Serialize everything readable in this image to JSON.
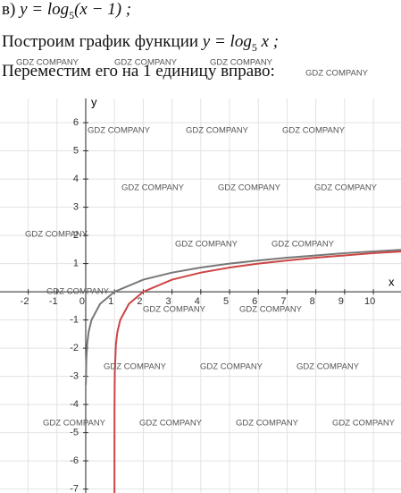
{
  "lines": [
    {
      "prefix": "в)",
      "formula": "y = log",
      "sub": "5",
      "rest": "(x − 1) ;"
    },
    {
      "prefix": "Построим график функции",
      "formula": "y = log",
      "sub": "5",
      "rest": "x ;"
    },
    {
      "prefix": "Переместим его на 1 единицу вправо:"
    }
  ],
  "watermarks": [
    "GDZ COMPANY",
    "GDZ COMPANY",
    "GDZ COMPANY",
    "GDZ COMPANY",
    "GDZ COMPANY",
    "GDZ COMPANY",
    "GDZ COMPANY",
    "GDZ COMPANY",
    "GDZ COMPANY",
    "GDZ COMPANY",
    "GDZ COMPANY",
    "GDZ COMPANY",
    "GDZ COMPANY",
    "GDZ COMPANY",
    "GDZ COMPANY",
    "GDZ COMPANY",
    "GDZ COMPANY",
    "GDZ COMPANY",
    "GDZ COMPANY",
    "GDZ COMPANY",
    "GDZ COMPANY",
    "GDZ COMPANY",
    "GDZ COMPANY"
  ],
  "chart_data": {
    "type": "line",
    "x_label": "x",
    "y_label": "y",
    "xlim": [
      -2.98,
      10.96
    ],
    "ylim": [
      -7.14,
      6.86
    ],
    "xticks": [
      -2,
      -1,
      0,
      1,
      2,
      3,
      4,
      5,
      6,
      7,
      8,
      9,
      10
    ],
    "yticks": [
      -7,
      -6,
      -5,
      -4,
      -3,
      -2,
      -1,
      1,
      2,
      3,
      4,
      5,
      6
    ],
    "grid": true,
    "series": [
      {
        "color": "#777777",
        "x": [
          0.005,
          0.02,
          0.05,
          0.1,
          0.2,
          0.5,
          1,
          2,
          3,
          4,
          5,
          6,
          7,
          8,
          9,
          10,
          11
        ],
        "values": [
          -3.29,
          -2.43,
          -1.86,
          -1.43,
          -1,
          -0.43,
          0,
          0.43,
          0.68,
          0.86,
          1,
          1.11,
          1.21,
          1.29,
          1.37,
          1.43,
          1.49
        ]
      },
      {
        "color": "#cc4444",
        "x": [
          1.00001,
          1.0001,
          1.001,
          1.01,
          1.05,
          1.1,
          1.2,
          1.5,
          2,
          3,
          4,
          5,
          6,
          7,
          8,
          9,
          10,
          11
        ],
        "values": [
          -7.15,
          -5.72,
          -4.29,
          -2.86,
          -1.86,
          -1.43,
          -1,
          -0.43,
          0,
          0.43,
          0.68,
          0.86,
          1,
          1.11,
          1.21,
          1.29,
          1.37,
          1.43
        ]
      }
    ]
  }
}
